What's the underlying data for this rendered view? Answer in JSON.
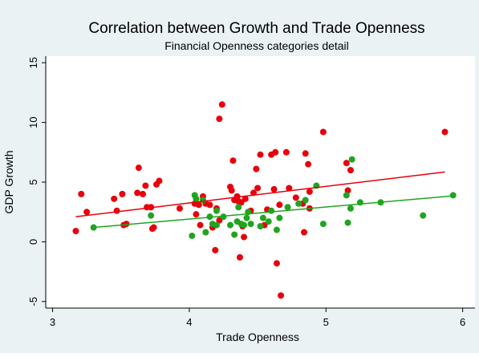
{
  "chart_data": {
    "type": "scatter",
    "title": "Correlation between Growth and Trade Openness",
    "subtitle": "Financial Openness categories detail",
    "x_label": "Trade Openness",
    "y_label": "GDP Growth",
    "xlim": [
      2.95,
      6.09
    ],
    "ylim": [
      -5.55,
      15.55
    ],
    "xticks": [
      3,
      4,
      5,
      6
    ],
    "yticks": [
      -5,
      0,
      5,
      10,
      15
    ],
    "series": [
      {
        "color": "#e8000b",
        "x": [
          3.17,
          3.21,
          3.25,
          3.45,
          3.47,
          3.51,
          3.52,
          3.54,
          3.62,
          3.63,
          3.66,
          3.68,
          3.69,
          3.72,
          3.73,
          3.74,
          3.76,
          3.78,
          3.93,
          4.04,
          4.05,
          4.07,
          4.08,
          4.1,
          4.12,
          4.15,
          4.17,
          4.19,
          4.2,
          4.22,
          4.24,
          4.22,
          4.3,
          4.31,
          4.32,
          4.33,
          4.35,
          4.36,
          4.37,
          4.38,
          4.39,
          4.4,
          4.41,
          4.45,
          4.47,
          4.49,
          4.5,
          4.52,
          4.55,
          4.57,
          4.6,
          4.62,
          4.63,
          4.64,
          4.66,
          4.67,
          4.71,
          4.73,
          4.78,
          4.83,
          4.84,
          4.85,
          4.87,
          4.88,
          4.88,
          4.98,
          5.15,
          5.16,
          5.18,
          5.87
        ],
        "values": [
          0.9,
          4.0,
          2.5,
          3.6,
          2.6,
          4.0,
          1.4,
          1.5,
          4.1,
          6.2,
          4.0,
          4.7,
          2.9,
          2.9,
          1.1,
          1.2,
          4.8,
          5.1,
          2.8,
          3.2,
          2.3,
          3.1,
          1.4,
          3.8,
          3.2,
          3.1,
          1.2,
          -0.7,
          2.8,
          10.3,
          11.5,
          1.8,
          4.6,
          4.3,
          6.8,
          3.5,
          3.8,
          3.4,
          -1.3,
          3.3,
          1.3,
          0.4,
          3.6,
          2.6,
          4.1,
          6.1,
          4.5,
          7.3,
          1.4,
          2.7,
          7.3,
          4.4,
          7.5,
          -1.8,
          3.1,
          -4.5,
          7.5,
          4.5,
          3.7,
          3.2,
          0.8,
          7.4,
          6.5,
          4.2,
          2.8,
          9.2,
          6.6,
          4.3,
          6.0,
          9.2
        ]
      },
      {
        "color": "#1fa51f",
        "x": [
          3.3,
          3.72,
          4.02,
          4.04,
          4.05,
          4.1,
          4.12,
          4.15,
          4.17,
          4.2,
          4.2,
          4.25,
          4.3,
          4.33,
          4.35,
          4.36,
          4.38,
          4.4,
          4.42,
          4.43,
          4.45,
          4.52,
          4.54,
          4.58,
          4.6,
          4.64,
          4.66,
          4.72,
          4.8,
          4.85,
          4.93,
          4.98,
          5.15,
          5.16,
          5.18,
          5.19,
          5.25,
          5.4,
          5.71,
          5.93
        ],
        "values": [
          1.2,
          2.2,
          0.5,
          3.9,
          3.6,
          3.5,
          0.8,
          2.1,
          1.5,
          2.6,
          1.4,
          2.1,
          1.4,
          0.6,
          1.7,
          2.9,
          1.5,
          1.4,
          2.0,
          2.5,
          1.5,
          1.3,
          2.0,
          1.7,
          2.6,
          1.0,
          2.0,
          2.9,
          3.2,
          3.5,
          4.7,
          1.5,
          3.9,
          1.6,
          2.8,
          6.9,
          3.3,
          3.3,
          2.2,
          3.9
        ]
      }
    ],
    "fit_lines": [
      {
        "color": "#e8000b",
        "x": [
          3.17,
          5.87
        ],
        "values": [
          2.1,
          5.85
        ]
      },
      {
        "color": "#1fa51f",
        "x": [
          3.3,
          5.93
        ],
        "values": [
          1.2,
          3.85
        ]
      }
    ]
  }
}
